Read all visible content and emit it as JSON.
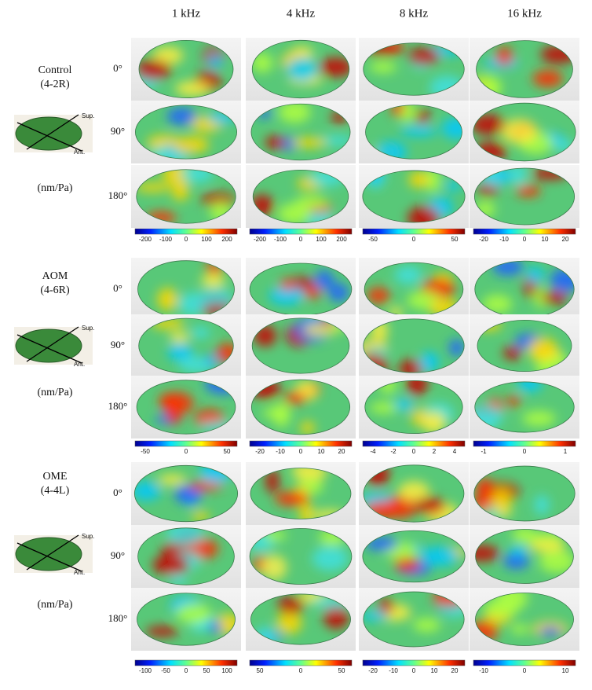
{
  "columns": [
    "1 kHz",
    "4 kHz",
    "8 kHz",
    "16 kHz"
  ],
  "groups": [
    {
      "name": "Control",
      "sample": "(4-2R)",
      "sup": "Sup.",
      "ant": "Ant.",
      "unit": "(nm/Pa)",
      "angles": [
        "0°",
        "90°",
        "180°"
      ],
      "colorbar_ticks": [
        [
          -200,
          -100,
          0,
          100,
          200
        ],
        [
          -200,
          -100,
          0,
          100,
          200
        ],
        [
          -50,
          0,
          50
        ],
        [
          -20,
          -10,
          0,
          10,
          20
        ]
      ]
    },
    {
      "name": "AOM",
      "sample": "(4-6R)",
      "sup": "Sup.",
      "ant": "Ant.",
      "unit": "(nm/Pa)",
      "angles": [
        "0°",
        "90°",
        "180°"
      ],
      "colorbar_ticks": [
        [
          -50,
          0,
          50
        ],
        [
          -20,
          -10,
          0,
          10,
          20
        ],
        [
          -4,
          -2,
          0,
          2,
          4
        ],
        [
          -1,
          0,
          1
        ]
      ]
    },
    {
      "name": "OME",
      "sample": "(4-4L)",
      "sup": "Sup.",
      "ant": "Ant.",
      "unit": "(nm/Pa)",
      "angles": [
        "0°",
        "90°",
        "180°"
      ],
      "colorbar_ticks": [
        [
          -100,
          -50,
          0,
          50,
          100
        ],
        [
          50,
          0,
          50
        ],
        [
          -20,
          -10,
          0,
          10,
          20
        ],
        [
          -10,
          0,
          10
        ]
      ]
    }
  ]
}
